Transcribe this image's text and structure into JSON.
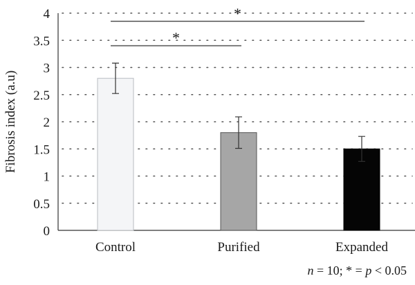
{
  "chart_data": {
    "type": "bar",
    "ylabel": "Fibrosis index (a.u)",
    "xlabel": "",
    "ylim": [
      0,
      4
    ],
    "yticks": [
      "0",
      "0.5",
      "1",
      "1.5",
      "2",
      "2.5",
      "3",
      "3.5",
      "4"
    ],
    "grid": true,
    "categories": [
      "Control",
      "Purified",
      "Expanded"
    ],
    "values": [
      2.8,
      1.8,
      1.5
    ],
    "error": [
      0.28,
      0.29,
      0.23
    ],
    "bar_colors": [
      "#f4f5f7",
      "#a6a6a6",
      "#050505"
    ],
    "bar_edges": [
      "#b8bcc2",
      "#555555",
      "#000000"
    ],
    "significance": [
      {
        "from": "Control",
        "to": "Purified",
        "y": 3.4,
        "label": "*"
      },
      {
        "from": "Control",
        "to": "Expanded",
        "y": 3.85,
        "label": "*"
      }
    ],
    "footnote_parts": [
      "n",
      " = 10; * = ",
      "p",
      " < 0.05"
    ]
  }
}
